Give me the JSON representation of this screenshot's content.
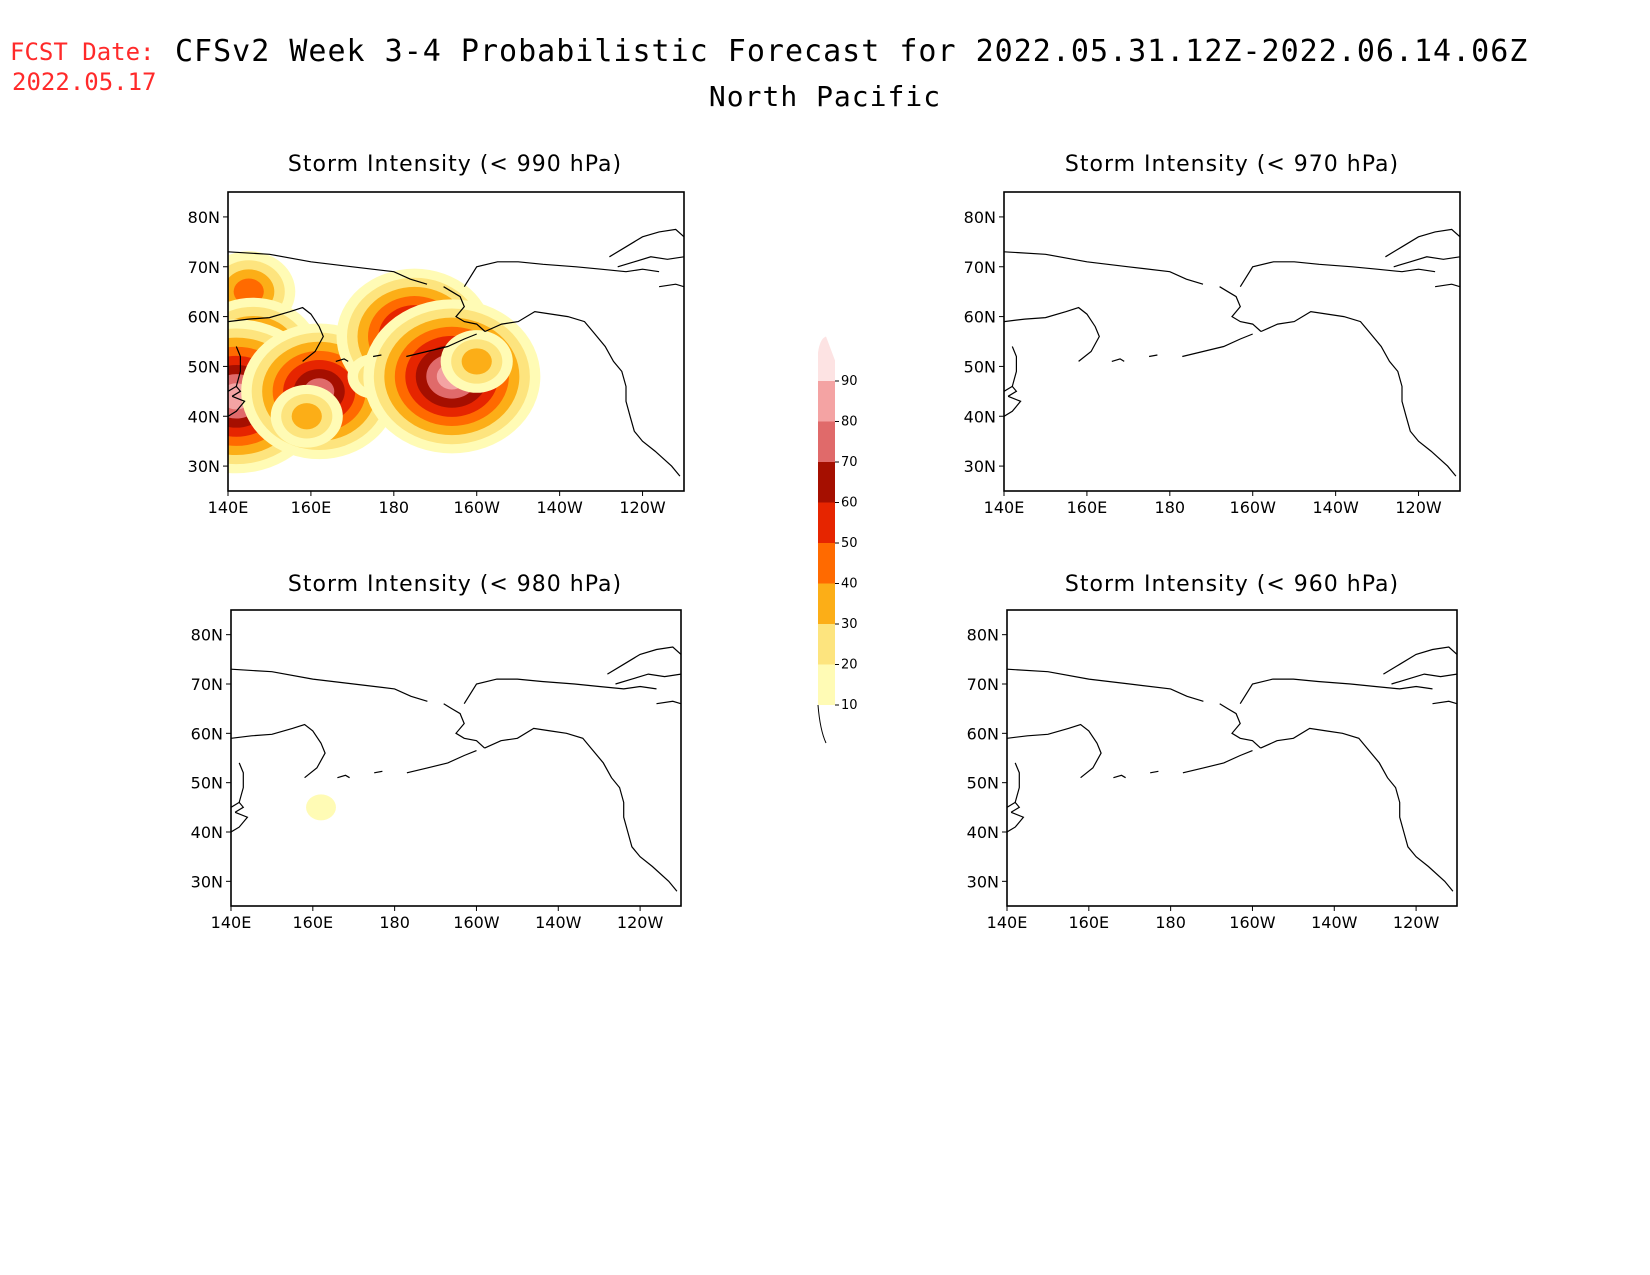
{
  "header": {
    "fcst_label": "FCST Date:",
    "fcst_date": "2022.05.17",
    "title": "CFSv2 Week 3-4 Probabilistic Forecast for 2022.05.31.12Z-2022.06.14.06Z",
    "region": "North Pacific"
  },
  "panels": [
    {
      "title": "Storm Intensity (< 990 hPa)",
      "has_shading": true
    },
    {
      "title": "Storm Intensity (< 970 hPa)",
      "has_shading": false
    },
    {
      "title": "Storm Intensity (< 980 hPa)",
      "has_shading": true
    },
    {
      "title": "Storm Intensity (< 960 hPa)",
      "has_shading": false
    }
  ],
  "axes": {
    "lat_ticks": [
      "80N",
      "70N",
      "60N",
      "50N",
      "40N",
      "30N"
    ],
    "lon_ticks": [
      "140E",
      "160E",
      "180",
      "160W",
      "140W",
      "120W"
    ]
  },
  "colorbar": {
    "levels": [
      "10",
      "20",
      "30",
      "40",
      "50",
      "60",
      "70",
      "80",
      "90"
    ],
    "colors": [
      "#fffbb5",
      "#fde47e",
      "#fcae17",
      "#ff6a00",
      "#e62500",
      "#a50f00",
      "#e06a6a",
      "#f4a3a3",
      "#fde3e3"
    ]
  },
  "chart_data": {
    "type": "heatmap",
    "variable": "Storm Intensity",
    "units_levels": [
      10,
      20,
      30,
      40,
      50,
      60,
      70,
      80,
      90
    ],
    "lat_range": [
      25,
      85
    ],
    "lon_range_east": [
      140,
      250
    ],
    "panels": [
      {
        "threshold": "< 990 hPa",
        "blobs": [
          {
            "lon": 145,
            "lat": 65,
            "max": 40
          },
          {
            "lon": 146,
            "lat": 52,
            "max": 60
          },
          {
            "lon": 142,
            "lat": 44,
            "max": 80
          },
          {
            "lon": 162,
            "lat": 45,
            "max": 70
          },
          {
            "lon": 159,
            "lat": 40,
            "max": 30
          },
          {
            "lon": 185,
            "lat": 56,
            "max": 70
          },
          {
            "lon": 175,
            "lat": 48,
            "max": 20
          },
          {
            "lon": 194,
            "lat": 48,
            "max": 80
          },
          {
            "lon": 200,
            "lat": 51,
            "max": 30
          }
        ]
      },
      {
        "threshold": "< 970 hPa",
        "blobs": []
      },
      {
        "threshold": "< 980 hPa",
        "blobs": [
          {
            "lon": 162,
            "lat": 45,
            "max": 10
          }
        ]
      },
      {
        "threshold": "< 960 hPa",
        "blobs": []
      }
    ]
  }
}
